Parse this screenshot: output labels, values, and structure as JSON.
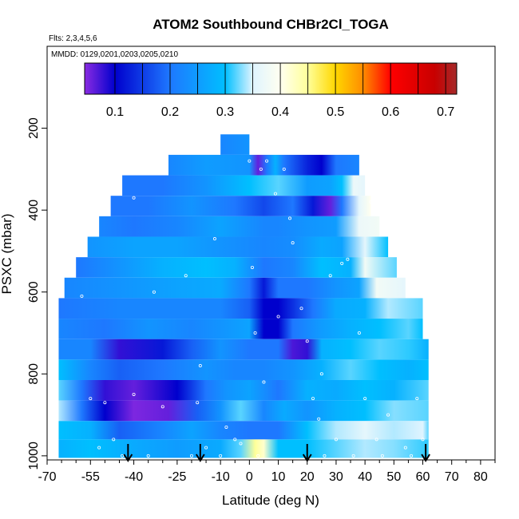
{
  "chart_data": {
    "type": "heatmap",
    "title": "ATOM2 Southbound CHBr2Cl_TOGA",
    "notes": [
      "Flts: 2,3,4,5,6",
      "MMDD: 0129,0201,0203,0205,0210"
    ],
    "xlabel": "Latitude (deg N)",
    "ylabel": "PSXC (mbar)",
    "xlim": [
      -70,
      85
    ],
    "ylim": [
      1010,
      0
    ],
    "x_ticks": [
      -70,
      -55,
      -40,
      -25,
      -10,
      0,
      10,
      20,
      30,
      40,
      50,
      60,
      70,
      80
    ],
    "x_tick_labels": [
      "-70",
      "-55",
      "-40",
      "-25",
      "-10",
      "0",
      "10",
      "20",
      "30",
      "40",
      "50",
      "60",
      "70",
      "80"
    ],
    "y_ticks": [
      200,
      400,
      600,
      800,
      1000
    ],
    "y_tick_labels": [
      "200",
      "400",
      "600",
      "800",
      "1000"
    ],
    "colorbar": {
      "range": [
        0.045,
        0.72
      ],
      "ticks": [
        0.1,
        0.2,
        0.3,
        0.4,
        0.5,
        0.6,
        0.7
      ],
      "tick_labels": [
        "0.1",
        "0.2",
        "0.3",
        "0.4",
        "0.5",
        "0.6",
        "0.7"
      ],
      "stops": [
        {
          "v": 0.045,
          "c": "#8a2be2"
        },
        {
          "v": 0.1,
          "c": "#0000cd"
        },
        {
          "v": 0.2,
          "c": "#1e78ff"
        },
        {
          "v": 0.3,
          "c": "#00bfff"
        },
        {
          "v": 0.35,
          "c": "#dff4ff"
        },
        {
          "v": 0.4,
          "c": "#fffff0"
        },
        {
          "v": 0.45,
          "c": "#ffff99"
        },
        {
          "v": 0.5,
          "c": "#ffd700"
        },
        {
          "v": 0.55,
          "c": "#ff8c00"
        },
        {
          "v": 0.6,
          "c": "#ff0000"
        },
        {
          "v": 0.68,
          "c": "#c80000"
        },
        {
          "v": 0.72,
          "c": "#a52a2a"
        }
      ]
    },
    "flight_marker_latitudes": [
      -42,
      -17,
      20,
      61
    ],
    "layers": [
      {
        "p_top": 215,
        "p_bot": 265,
        "lat_min": -10,
        "lat_max": 0,
        "nodes": [
          [
            -10,
            0.22
          ],
          [
            -5,
            0.23
          ],
          [
            0,
            0.24
          ]
        ]
      },
      {
        "p_top": 265,
        "p_bot": 315,
        "lat_min": -28,
        "lat_max": 38,
        "nodes": [
          [
            -28,
            0.22
          ],
          [
            -15,
            0.25
          ],
          [
            0,
            0.24
          ],
          [
            3,
            0.06
          ],
          [
            6,
            0.2
          ],
          [
            9,
            0.28
          ],
          [
            12,
            0.2
          ],
          [
            20,
            0.13
          ],
          [
            25,
            0.1
          ],
          [
            30,
            0.2
          ],
          [
            38,
            0.22
          ]
        ]
      },
      {
        "p_top": 315,
        "p_bot": 365,
        "lat_min": -44,
        "lat_max": 40,
        "nodes": [
          [
            -44,
            0.2
          ],
          [
            -30,
            0.2
          ],
          [
            -15,
            0.24
          ],
          [
            0,
            0.3
          ],
          [
            10,
            0.32
          ],
          [
            20,
            0.25
          ],
          [
            28,
            0.26
          ],
          [
            32,
            0.3
          ],
          [
            36,
            0.37
          ],
          [
            40,
            0.36
          ]
        ]
      },
      {
        "p_top": 365,
        "p_bot": 415,
        "lat_min": -48,
        "lat_max": 42,
        "nodes": [
          [
            -48,
            0.2
          ],
          [
            -35,
            0.2
          ],
          [
            -20,
            0.24
          ],
          [
            -5,
            0.2
          ],
          [
            5,
            0.16
          ],
          [
            15,
            0.2
          ],
          [
            22,
            0.12
          ],
          [
            28,
            0.06
          ],
          [
            32,
            0.2
          ],
          [
            38,
            0.36
          ],
          [
            42,
            0.4
          ]
        ]
      },
      {
        "p_top": 415,
        "p_bot": 465,
        "lat_min": -52,
        "lat_max": 45,
        "nodes": [
          [
            -52,
            0.22
          ],
          [
            -40,
            0.2
          ],
          [
            -25,
            0.22
          ],
          [
            -10,
            0.26
          ],
          [
            5,
            0.22
          ],
          [
            10,
            0.22
          ],
          [
            20,
            0.24
          ],
          [
            30,
            0.25
          ],
          [
            38,
            0.37
          ],
          [
            45,
            0.38
          ]
        ]
      },
      {
        "p_top": 465,
        "p_bot": 515,
        "lat_min": -56,
        "lat_max": 48,
        "nodes": [
          [
            -56,
            0.24
          ],
          [
            -40,
            0.26
          ],
          [
            -25,
            0.26
          ],
          [
            -10,
            0.24
          ],
          [
            5,
            0.22
          ],
          [
            15,
            0.23
          ],
          [
            25,
            0.27
          ],
          [
            32,
            0.26
          ],
          [
            40,
            0.36
          ],
          [
            48,
            0.3
          ]
        ]
      },
      {
        "p_top": 515,
        "p_bot": 565,
        "lat_min": -60,
        "lat_max": 51,
        "nodes": [
          [
            -60,
            0.2
          ],
          [
            -45,
            0.24
          ],
          [
            -30,
            0.28
          ],
          [
            -15,
            0.3
          ],
          [
            -5,
            0.28
          ],
          [
            5,
            0.2
          ],
          [
            15,
            0.22
          ],
          [
            25,
            0.3
          ],
          [
            35,
            0.28
          ],
          [
            40,
            0.38
          ],
          [
            51,
            0.32
          ]
        ]
      },
      {
        "p_top": 565,
        "p_bot": 615,
        "lat_min": -64,
        "lat_max": 54,
        "nodes": [
          [
            -64,
            0.22
          ],
          [
            -45,
            0.24
          ],
          [
            -25,
            0.26
          ],
          [
            -10,
            0.27
          ],
          [
            0,
            0.2
          ],
          [
            5,
            0.12
          ],
          [
            10,
            0.2
          ],
          [
            20,
            0.2
          ],
          [
            30,
            0.24
          ],
          [
            38,
            0.26
          ],
          [
            44,
            0.38
          ],
          [
            54,
            0.36
          ]
        ]
      },
      {
        "p_top": 615,
        "p_bot": 665,
        "lat_min": -66,
        "lat_max": 60,
        "nodes": [
          [
            -66,
            0.2
          ],
          [
            -45,
            0.22
          ],
          [
            -25,
            0.22
          ],
          [
            -10,
            0.22
          ],
          [
            0,
            0.18
          ],
          [
            5,
            0.1
          ],
          [
            10,
            0.1
          ],
          [
            15,
            0.14
          ],
          [
            22,
            0.2
          ],
          [
            30,
            0.27
          ],
          [
            40,
            0.28
          ],
          [
            48,
            0.34
          ],
          [
            60,
            0.32
          ]
        ]
      },
      {
        "p_top": 665,
        "p_bot": 715,
        "lat_min": -66,
        "lat_max": 60,
        "nodes": [
          [
            -66,
            0.22
          ],
          [
            -50,
            0.2
          ],
          [
            -35,
            0.24
          ],
          [
            -20,
            0.22
          ],
          [
            -10,
            0.24
          ],
          [
            0,
            0.26
          ],
          [
            5,
            0.1
          ],
          [
            10,
            0.1
          ],
          [
            15,
            0.2
          ],
          [
            25,
            0.25
          ],
          [
            35,
            0.28
          ],
          [
            45,
            0.3
          ],
          [
            55,
            0.32
          ],
          [
            60,
            0.3
          ]
        ]
      },
      {
        "p_top": 715,
        "p_bot": 765,
        "lat_min": -66,
        "lat_max": 62,
        "nodes": [
          [
            -66,
            0.22
          ],
          [
            -55,
            0.22
          ],
          [
            -45,
            0.08
          ],
          [
            -30,
            0.12
          ],
          [
            -20,
            0.18
          ],
          [
            -10,
            0.24
          ],
          [
            0,
            0.2
          ],
          [
            10,
            0.2
          ],
          [
            15,
            0.07
          ],
          [
            20,
            0.08
          ],
          [
            25,
            0.28
          ],
          [
            35,
            0.3
          ],
          [
            45,
            0.32
          ],
          [
            55,
            0.31
          ],
          [
            62,
            0.28
          ]
        ]
      },
      {
        "p_top": 765,
        "p_bot": 815,
        "lat_min": -66,
        "lat_max": 62,
        "nodes": [
          [
            -66,
            0.3
          ],
          [
            -55,
            0.22
          ],
          [
            -45,
            0.18
          ],
          [
            -30,
            0.2
          ],
          [
            -15,
            0.24
          ],
          [
            -5,
            0.22
          ],
          [
            5,
            0.22
          ],
          [
            15,
            0.24
          ],
          [
            25,
            0.28
          ],
          [
            35,
            0.32
          ],
          [
            45,
            0.3
          ],
          [
            55,
            0.28
          ],
          [
            62,
            0.3
          ]
        ]
      },
      {
        "p_top": 815,
        "p_bot": 865,
        "lat_min": -66,
        "lat_max": 62,
        "nodes": [
          [
            -66,
            0.32
          ],
          [
            -58,
            0.2
          ],
          [
            -50,
            0.08
          ],
          [
            -40,
            0.06
          ],
          [
            -25,
            0.1
          ],
          [
            -15,
            0.2
          ],
          [
            -8,
            0.24
          ],
          [
            0,
            0.26
          ],
          [
            10,
            0.2
          ],
          [
            20,
            0.28
          ],
          [
            30,
            0.27
          ],
          [
            40,
            0.3
          ],
          [
            50,
            0.28
          ],
          [
            62,
            0.32
          ]
        ]
      },
      {
        "p_top": 865,
        "p_bot": 915,
        "lat_min": -66,
        "lat_max": 62,
        "nodes": [
          [
            -66,
            0.34
          ],
          [
            -58,
            0.2
          ],
          [
            -50,
            0.1
          ],
          [
            -40,
            0.05
          ],
          [
            -28,
            0.06
          ],
          [
            -18,
            0.18
          ],
          [
            -10,
            0.24
          ],
          [
            -3,
            0.32
          ],
          [
            5,
            0.22
          ],
          [
            12,
            0.27
          ],
          [
            20,
            0.24
          ],
          [
            30,
            0.28
          ],
          [
            40,
            0.3
          ],
          [
            50,
            0.33
          ],
          [
            62,
            0.32
          ]
        ]
      },
      {
        "p_top": 915,
        "p_bot": 960,
        "lat_min": -66,
        "lat_max": 62,
        "nodes": [
          [
            -66,
            0.3
          ],
          [
            -55,
            0.28
          ],
          [
            -45,
            0.18
          ],
          [
            -30,
            0.22
          ],
          [
            -20,
            0.26
          ],
          [
            -10,
            0.22
          ],
          [
            0,
            0.2
          ],
          [
            10,
            0.2
          ],
          [
            20,
            0.3
          ],
          [
            30,
            0.34
          ],
          [
            40,
            0.36
          ],
          [
            50,
            0.34
          ],
          [
            60,
            0.35
          ],
          [
            62,
            0.32
          ]
        ]
      },
      {
        "p_top": 960,
        "p_bot": 1005,
        "lat_min": -66,
        "lat_max": 62,
        "nodes": [
          [
            -66,
            0.28
          ],
          [
            -55,
            0.3
          ],
          [
            -40,
            0.27
          ],
          [
            -25,
            0.25
          ],
          [
            -10,
            0.27
          ],
          [
            -3,
            0.32
          ],
          [
            2,
            0.45
          ],
          [
            5,
            0.42
          ],
          [
            10,
            0.3
          ],
          [
            20,
            0.3
          ],
          [
            30,
            0.32
          ],
          [
            40,
            0.34
          ],
          [
            50,
            0.33
          ],
          [
            62,
            0.31
          ]
        ]
      }
    ],
    "sample_points": [
      [
        -58,
        610
      ],
      [
        -55,
        860
      ],
      [
        -52,
        980
      ],
      [
        -50,
        870
      ],
      [
        -47,
        960
      ],
      [
        -44,
        1000
      ],
      [
        -40,
        850
      ],
      [
        -35,
        1000
      ],
      [
        -30,
        880
      ],
      [
        -28,
        260
      ],
      [
        -25,
        250
      ],
      [
        -20,
        1000
      ],
      [
        -18,
        870
      ],
      [
        -15,
        980
      ],
      [
        -10,
        1000
      ],
      [
        -8,
        930
      ],
      [
        -5,
        960
      ],
      [
        -3,
        970
      ],
      [
        0,
        280
      ],
      [
        1,
        540
      ],
      [
        2,
        700
      ],
      [
        3,
        1000
      ],
      [
        4,
        300
      ],
      [
        5,
        820
      ],
      [
        6,
        280
      ],
      [
        8,
        260
      ],
      [
        9,
        360
      ],
      [
        10,
        660
      ],
      [
        12,
        300
      ],
      [
        14,
        420
      ],
      [
        15,
        480
      ],
      [
        16,
        260
      ],
      [
        18,
        640
      ],
      [
        20,
        720
      ],
      [
        22,
        860
      ],
      [
        24,
        910
      ],
      [
        26,
        1000
      ],
      [
        28,
        560
      ],
      [
        30,
        960
      ],
      [
        32,
        530
      ],
      [
        34,
        520
      ],
      [
        36,
        1000
      ],
      [
        38,
        700
      ],
      [
        40,
        860
      ],
      [
        42,
        380
      ],
      [
        44,
        960
      ],
      [
        46,
        1000
      ],
      [
        48,
        900
      ],
      [
        50,
        420
      ],
      [
        52,
        560
      ],
      [
        54,
        980
      ],
      [
        56,
        1000
      ],
      [
        58,
        860
      ],
      [
        60,
        960
      ],
      [
        -12,
        470
      ],
      [
        -22,
        560
      ],
      [
        -33,
        600
      ],
      [
        -40,
        370
      ],
      [
        -17,
        780
      ],
      [
        25,
        800
      ]
    ]
  }
}
